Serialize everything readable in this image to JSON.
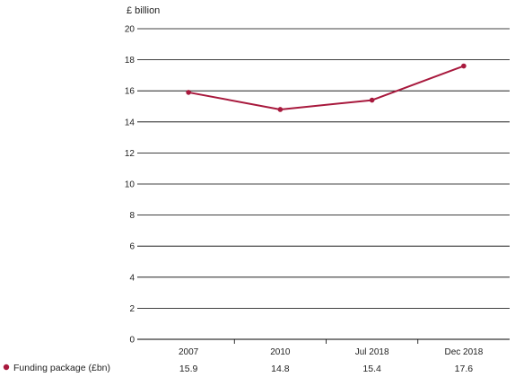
{
  "chart_data": {
    "type": "line",
    "ylabel": "£ billion",
    "ylim": [
      0,
      20
    ],
    "yticks": [
      0,
      2,
      4,
      6,
      8,
      10,
      12,
      14,
      16,
      18,
      20
    ],
    "categories": [
      "2007",
      "2010",
      "Jul 2018",
      "Dec 2018"
    ],
    "series": [
      {
        "name": "Funding package (£bn)",
        "values": [
          15.9,
          14.8,
          15.4,
          17.6
        ],
        "value_labels": [
          "15.9",
          "14.8",
          "15.4",
          "17.6"
        ],
        "color": "#a8193d"
      }
    ],
    "grid": true,
    "legend_position": "bottom-left"
  }
}
